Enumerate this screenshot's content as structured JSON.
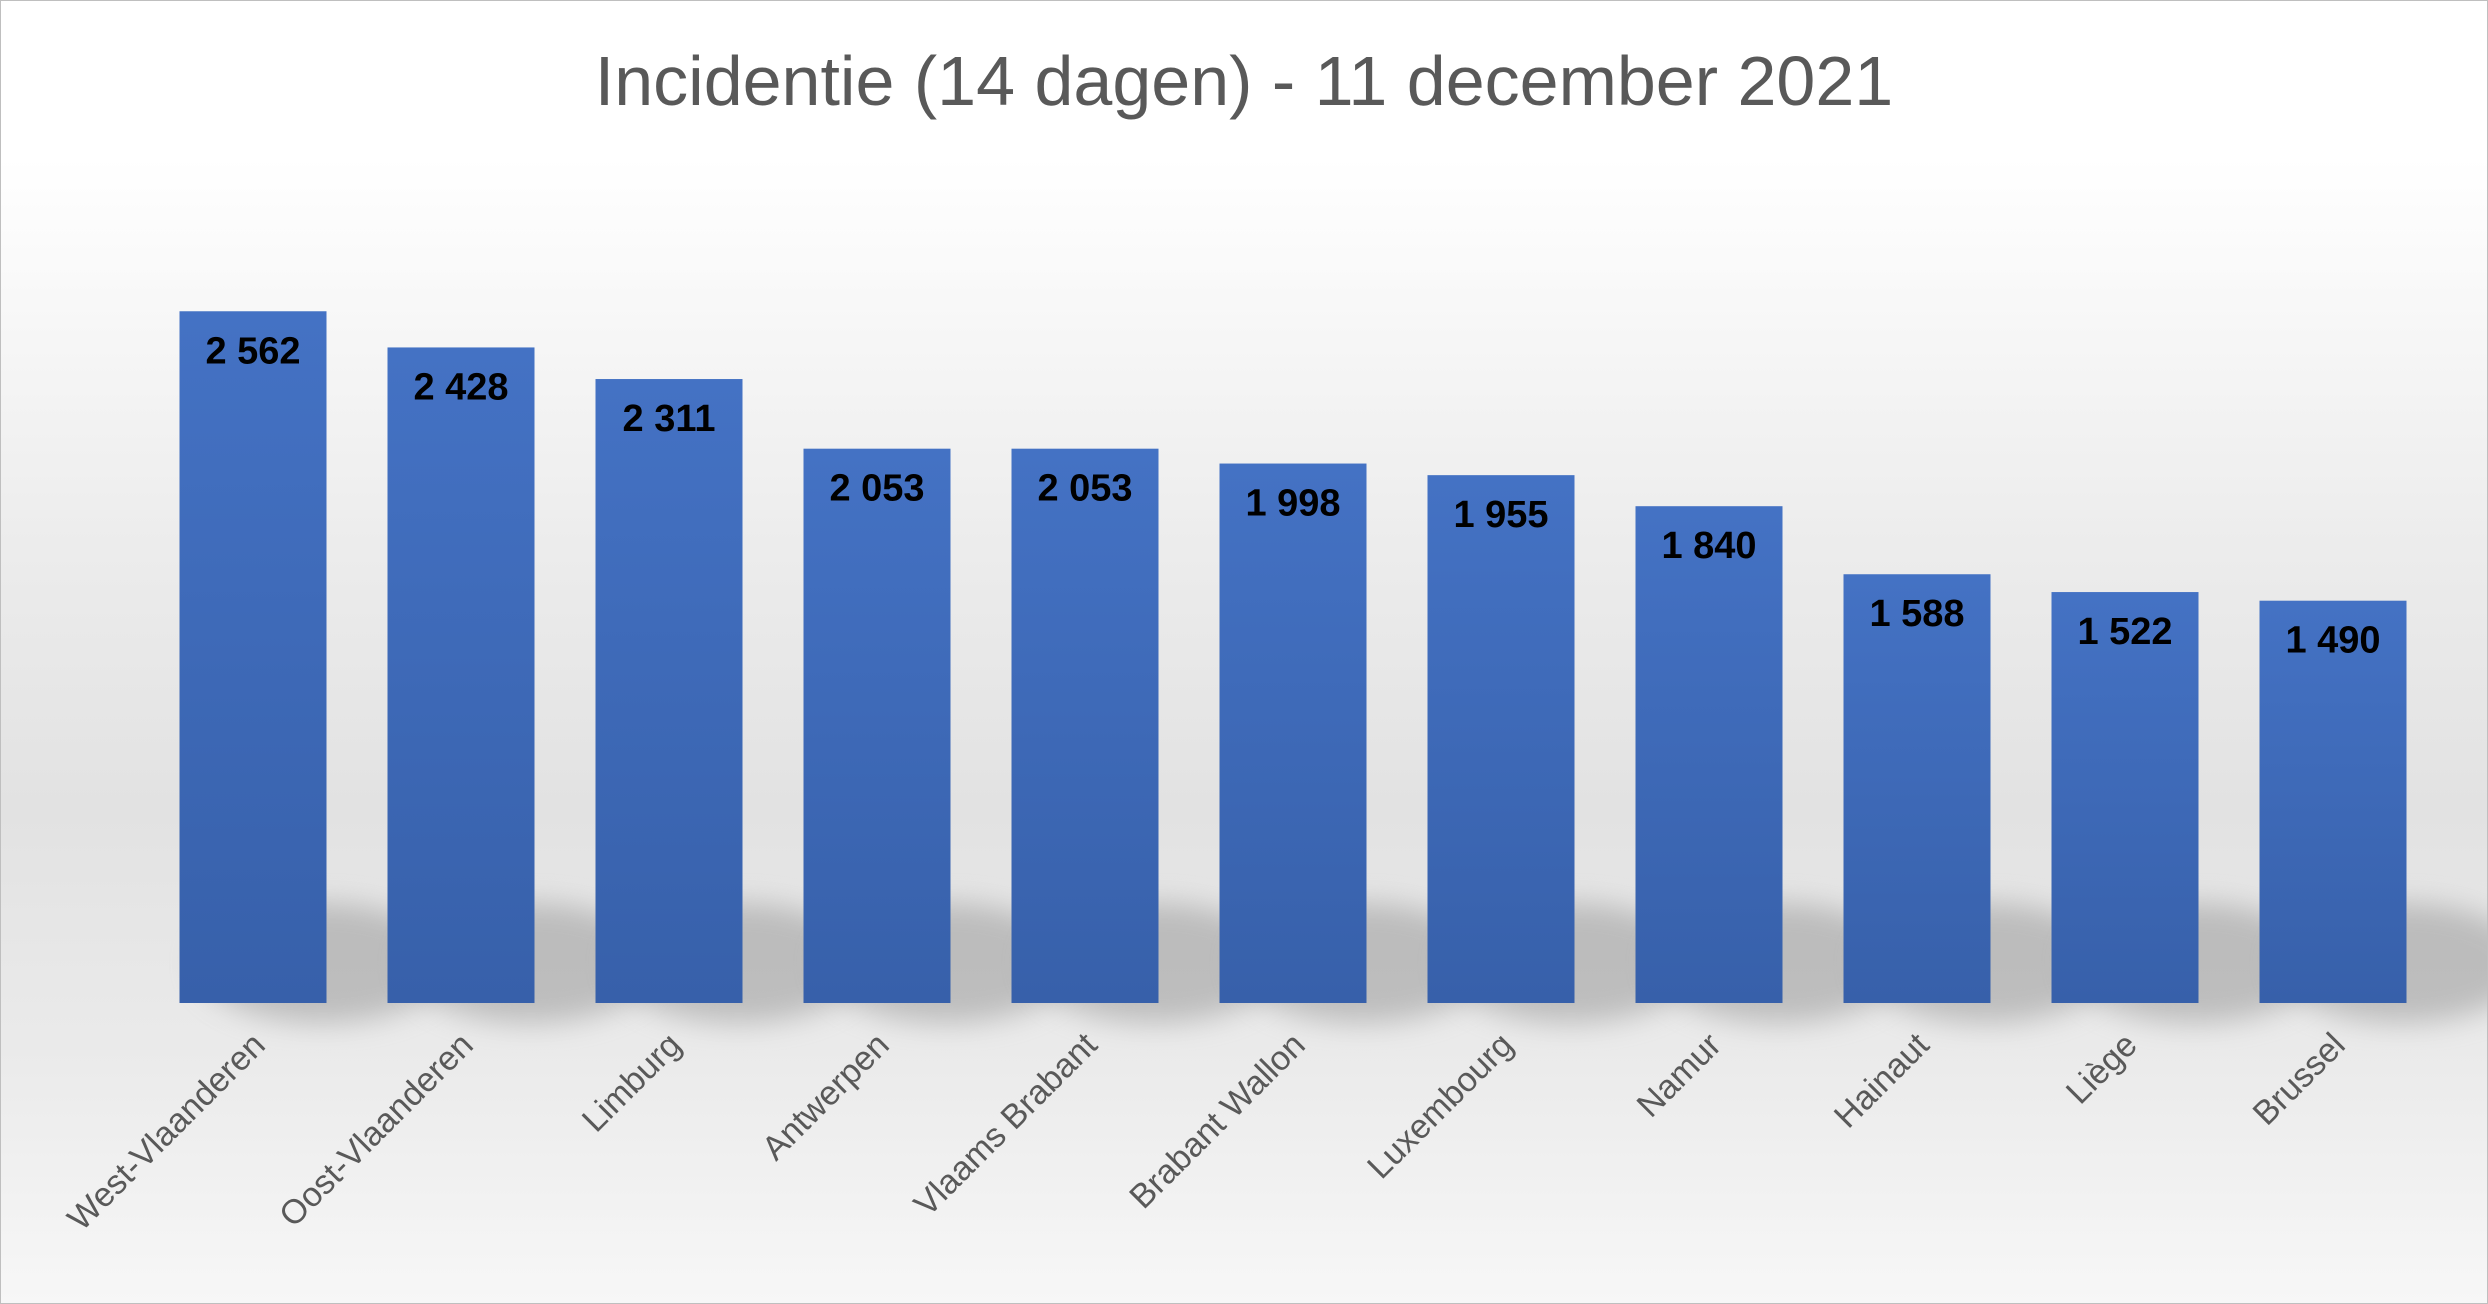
{
  "chart_data": {
    "type": "bar",
    "title": "Incidentie (14 dagen) - 11 december 2021",
    "categories": [
      "West-Vlaanderen",
      "Oost-Vlaanderen",
      "Limburg",
      "Antwerpen",
      "Vlaams Brabant",
      "Brabant Wallon",
      "Luxembourg",
      "Namur",
      "Hainaut",
      "Liège",
      "Brussel"
    ],
    "values": [
      2562,
      2428,
      2311,
      2053,
      2053,
      1998,
      1955,
      1840,
      1588,
      1522,
      1490
    ],
    "value_labels": [
      "2 562",
      "2 428",
      "2 311",
      "2 053",
      "2 053",
      "1 998",
      "1 955",
      "1 840",
      "1 588",
      "1 522",
      "1 490"
    ],
    "xlabel": "",
    "ylabel": "",
    "ylim": [
      0,
      2800
    ],
    "grid": false,
    "legend": "none",
    "colors": {
      "bar_top": "#4472c4",
      "bar_bottom": "#3760aa",
      "title": "#595959",
      "axis_label": "#595959",
      "data_label": "#000000"
    }
  }
}
